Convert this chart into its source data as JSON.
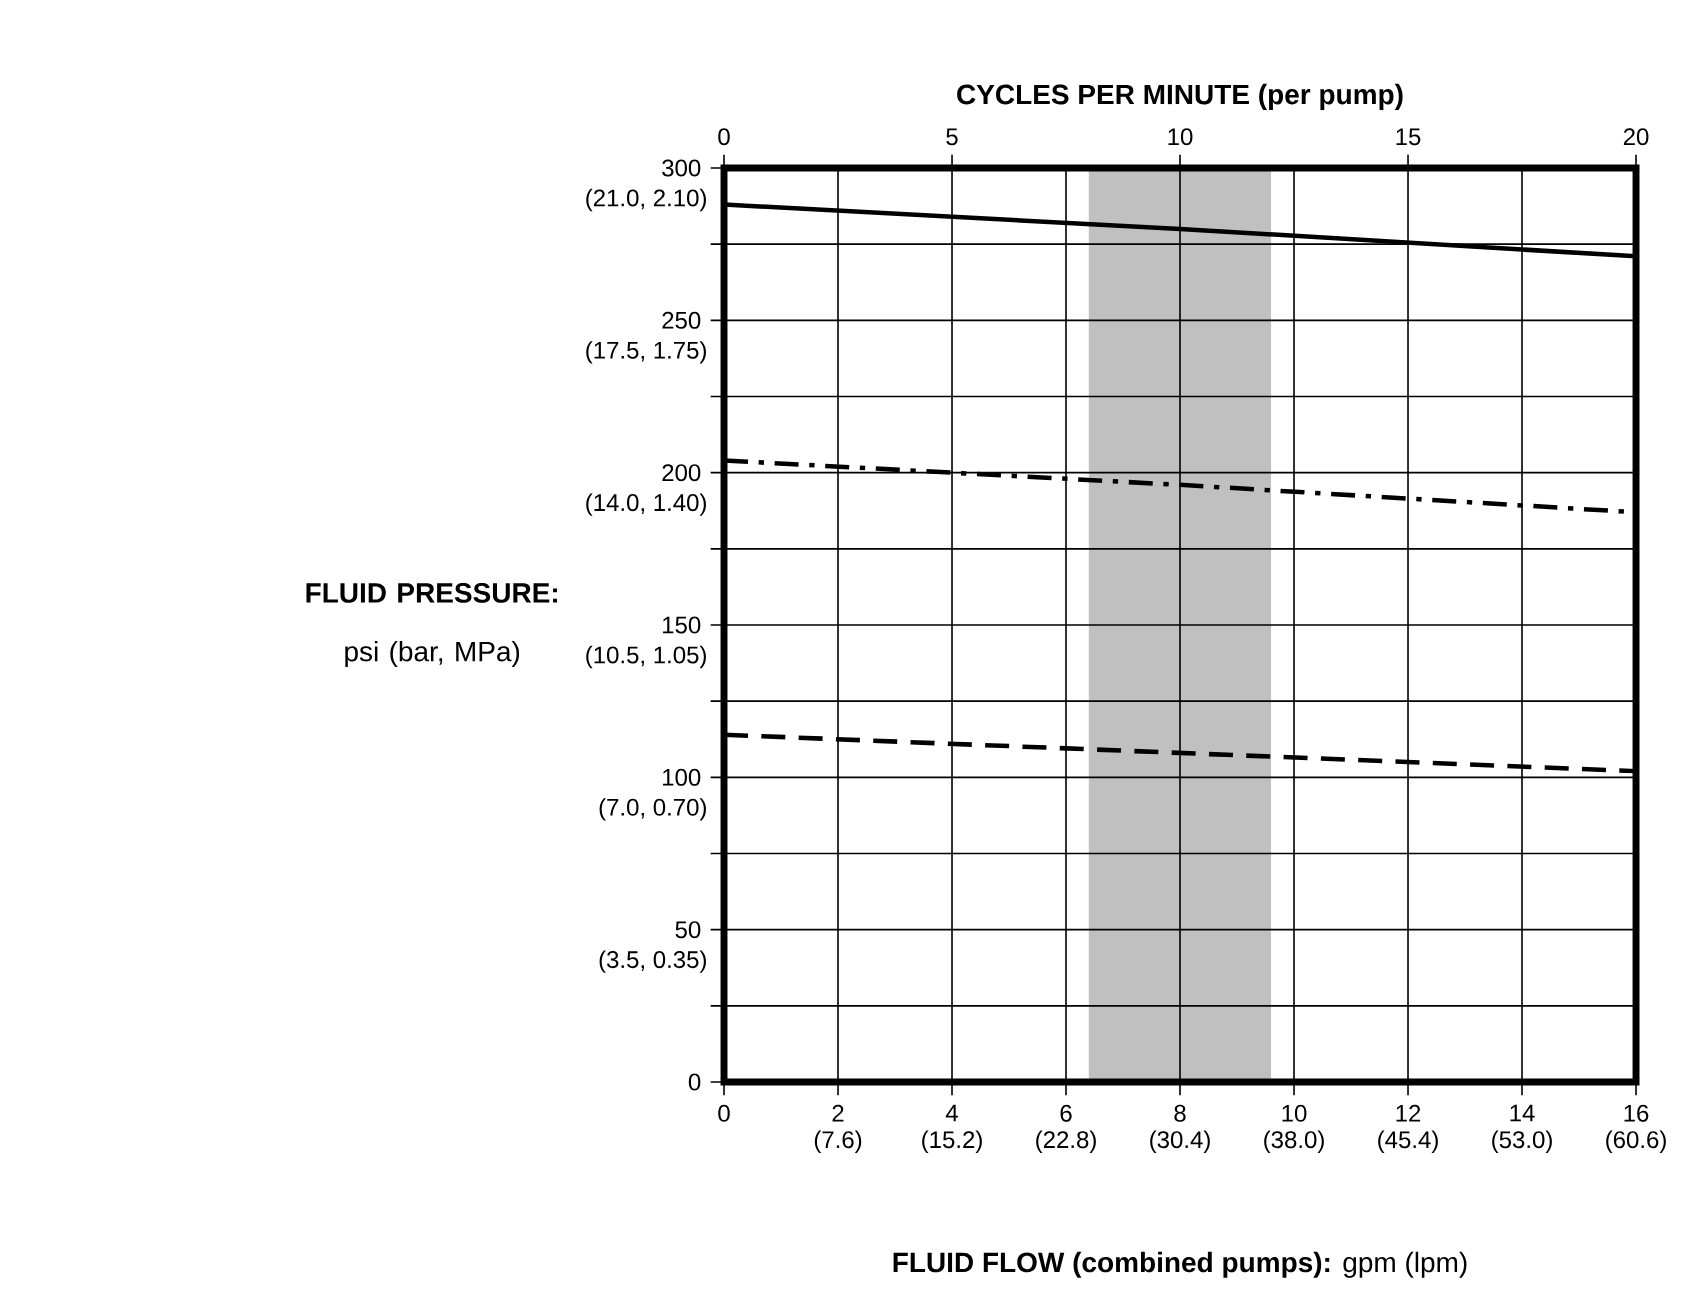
{
  "chart_data": {
    "type": "line",
    "xlabel": "**FLUID FLOW (combined pumps):** gpm (lpm)",
    "ylabel": "**FLUID PRESSURE:** psi (bar, MPa)",
    "x2label": "**CYCLES PER MINUTE (per pump)**",
    "x": [
      0,
      8,
      16
    ],
    "series": [
      {
        "color": "#000000",
        "line_style": "solid",
        "values": [
          288,
          280,
          271
        ]
      },
      {
        "color": "#000000",
        "line_style": "dashdot",
        "values": [
          204,
          196,
          187
        ]
      },
      {
        "color": "#000000",
        "line_style": "dashed",
        "values": [
          114,
          108,
          102
        ]
      }
    ],
    "xlim": [
      0,
      16
    ],
    "xticks": [
      0,
      2,
      4,
      6,
      8,
      10,
      12,
      14,
      16
    ],
    "ylim": [
      0,
      300
    ],
    "yticks": [
      0,
      {
        "value": 25,
        "label": null
      },
      50,
      {
        "value": 75,
        "label": null
      },
      100,
      {
        "value": 125,
        "label": null
      },
      150,
      {
        "value": 175,
        "label": null
      },
      200,
      {
        "value": 225,
        "label": null
      },
      250,
      {
        "value": 275,
        "label": null
      },
      300
    ],
    "x2lim": [
      0,
      20
    ],
    "x2ticks": [
      0,
      5,
      10,
      15,
      20
    ],
    "annotations": [
      "(7.6)",
      "(15.2)",
      "(22.8)",
      "(30.4)",
      "(38.0)",
      "(45.4)",
      "(53.0)",
      "(60.6)",
      "(3.5, 0.35)",
      "(7.0, 0.70)",
      "(10.5, 1.05)",
      "(14.0, 1.40)",
      "(17.5, 1.75)",
      "(21.0, 2.10)"
    ],
    "bands": [
      {
        "axis": "x",
        "from": 6.4,
        "to": 9.6,
        "color": "#c0c0c0"
      }
    ],
    "grid": true,
    "marker": "none"
  }
}
